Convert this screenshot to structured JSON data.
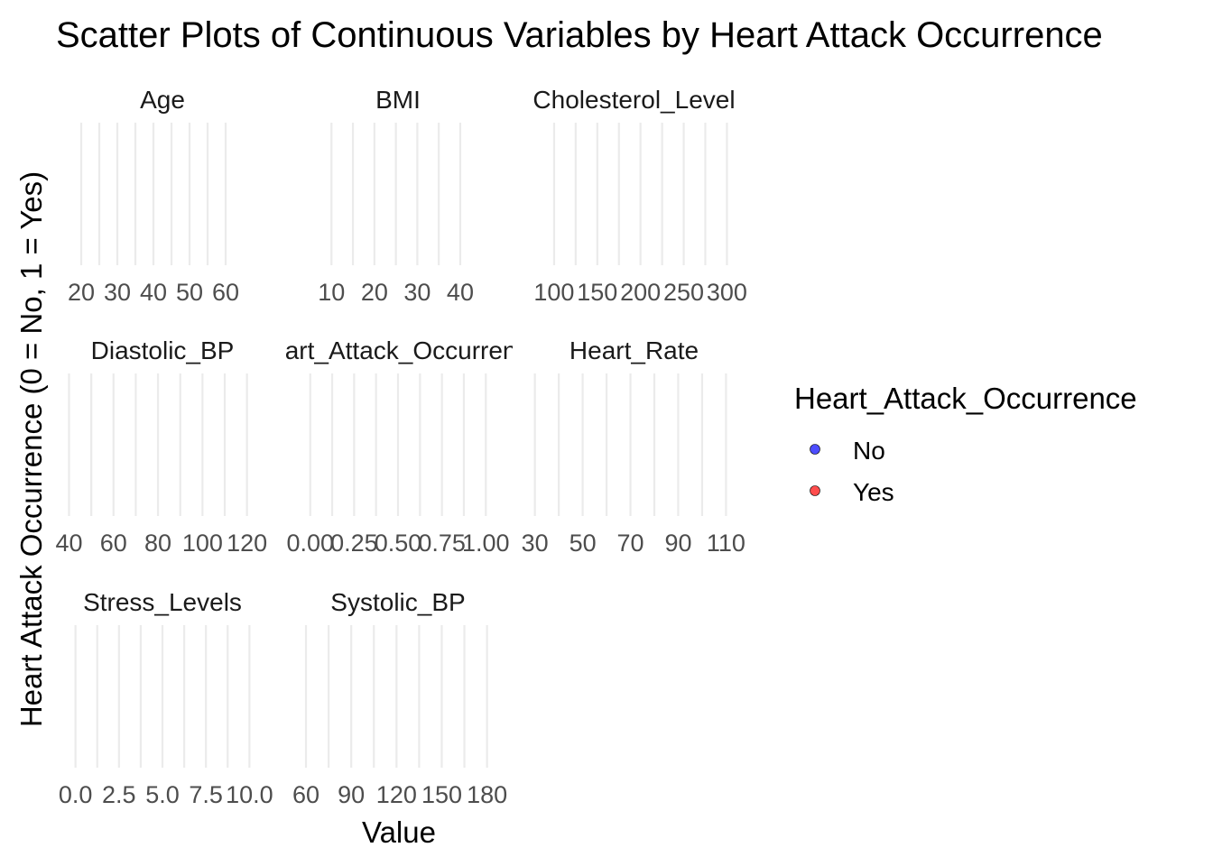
{
  "chart_data": {
    "type": "scatter",
    "title": "Scatter Plots of Continuous Variables by Heart Attack Occurrence",
    "xlabel": "Value",
    "ylabel": "Heart Attack Occurrence (0 = No, 1 = Yes)",
    "grid": true,
    "legend": {
      "title": "Heart_Attack_Occurrence",
      "placement": "right",
      "entries": [
        {
          "label": "No",
          "color": "#4d4dff"
        },
        {
          "label": "Yes",
          "color": "#ff4d4d"
        }
      ]
    },
    "facets": [
      {
        "name": "Age",
        "xlim": [
          16,
          69
        ],
        "ticks": [
          20,
          30,
          40,
          50,
          60
        ],
        "tick_labels": [
          "20",
          "30",
          "40",
          "50",
          "60"
        ],
        "points": []
      },
      {
        "name": "BMI",
        "xlim": [
          3,
          48
        ],
        "ticks": [
          10,
          20,
          30,
          40
        ],
        "tick_labels": [
          "10",
          "20",
          "30",
          "40"
        ],
        "points": []
      },
      {
        "name": "Cholesterol_Level",
        "xlim": [
          75,
          310
        ],
        "ticks": [
          100,
          150,
          200,
          250,
          300
        ],
        "tick_labels": [
          "100",
          "150",
          "200",
          "250",
          "300"
        ],
        "points": []
      },
      {
        "name": "Diastolic_BP",
        "xlim": [
          39,
          125
        ],
        "ticks": [
          40,
          60,
          80,
          100,
          120
        ],
        "tick_labels": [
          "40",
          "60",
          "80",
          "100",
          "120"
        ],
        "points": []
      },
      {
        "name": "Heart_Attack_Occurrence",
        "xlim": [
          -0.05,
          1.05
        ],
        "ticks": [
          0,
          0.25,
          0.5,
          0.75,
          1
        ],
        "tick_labels": [
          "0.00",
          "0.25",
          "0.50",
          "0.75",
          "1.00"
        ],
        "points": []
      },
      {
        "name": "Heart_Rate",
        "xlim": [
          29,
          114
        ],
        "ticks": [
          30,
          50,
          70,
          90,
          110
        ],
        "tick_labels": [
          "30",
          "50",
          "70",
          "90",
          "110"
        ],
        "points": []
      },
      {
        "name": "Stress_Levels",
        "xlim": [
          -0.5,
          10.5
        ],
        "ticks": [
          0,
          2.5,
          5,
          7.5,
          10
        ],
        "tick_labels": [
          "0.0",
          "2.5",
          "5.0",
          "7.5",
          "10.0"
        ],
        "points": []
      },
      {
        "name": "Systolic_BP",
        "xlim": [
          57,
          185
        ],
        "ticks": [
          60,
          90,
          120,
          150,
          180
        ],
        "tick_labels": [
          "60",
          "90",
          "120",
          "150",
          "180"
        ],
        "points": []
      }
    ]
  }
}
